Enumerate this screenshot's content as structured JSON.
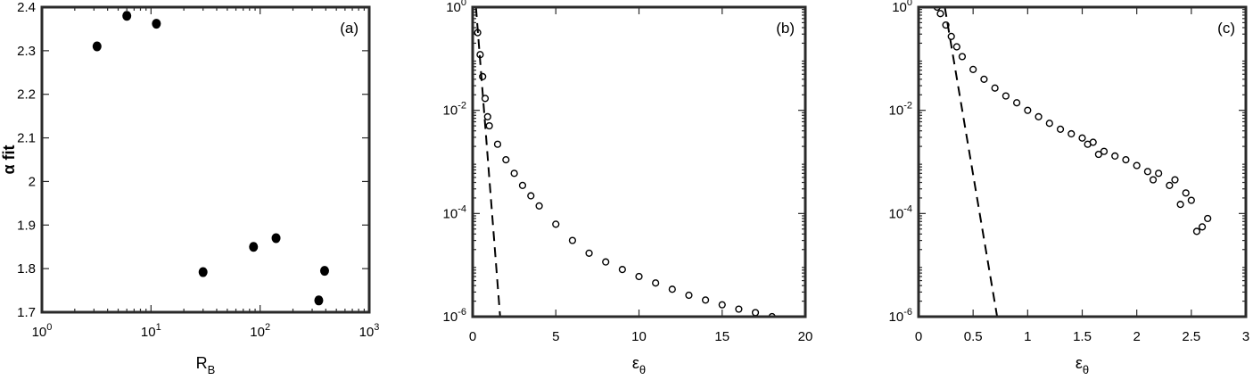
{
  "chart_data": [
    {
      "type": "scatter",
      "panel_label": "(a)",
      "xlabel_main": "R",
      "xlabel_sub": "B",
      "ylabel": "α fit",
      "xscale": "log",
      "xlim": [
        1,
        1000
      ],
      "ylim": [
        1.7,
        2.4
      ],
      "xticks": [
        {
          "base": "10",
          "exp": "0",
          "value": 1
        },
        {
          "base": "10",
          "exp": "1",
          "value": 10
        },
        {
          "base": "10",
          "exp": "2",
          "value": 100
        },
        {
          "base": "10",
          "exp": "3",
          "value": 1000
        }
      ],
      "yticks": [
        {
          "label": "1.7",
          "value": 1.7
        },
        {
          "label": "1.8",
          "value": 1.8
        },
        {
          "label": "1.9",
          "value": 1.9
        },
        {
          "label": "2",
          "value": 2.0
        },
        {
          "label": "2.1",
          "value": 2.1
        },
        {
          "label": "2.2",
          "value": 2.2
        },
        {
          "label": "2.3",
          "value": 2.3
        },
        {
          "label": "2.4",
          "value": 2.4
        }
      ],
      "points": [
        {
          "x": 3.2,
          "y": 2.31
        },
        {
          "x": 6.0,
          "y": 2.38
        },
        {
          "x": 11.2,
          "y": 2.362
        },
        {
          "x": 30,
          "y": 1.792
        },
        {
          "x": 87,
          "y": 1.85
        },
        {
          "x": 140,
          "y": 1.87
        },
        {
          "x": 345,
          "y": 1.727
        },
        {
          "x": 390,
          "y": 1.795
        }
      ]
    },
    {
      "type": "scatter",
      "panel_label": "(b)",
      "xlabel_main": "ε",
      "xlabel_sub": "θ",
      "yscale": "log",
      "xlim": [
        0,
        20
      ],
      "ylim": [
        1e-06,
        1
      ],
      "xticks": [
        {
          "label": "0",
          "value": 0
        },
        {
          "label": "5",
          "value": 5
        },
        {
          "label": "10",
          "value": 10
        },
        {
          "label": "15",
          "value": 15
        },
        {
          "label": "20",
          "value": 20
        }
      ],
      "yticks": [
        {
          "base": "10",
          "exp": "0",
          "value": 1
        },
        {
          "base": "10",
          "exp": "-2",
          "value": 0.01
        },
        {
          "base": "10",
          "exp": "-4",
          "value": 0.0001
        },
        {
          "base": "10",
          "exp": "-6",
          "value": 1e-06
        }
      ],
      "series": [
        {
          "style": "open-circles",
          "x": [
            0.3,
            0.45,
            0.6,
            0.75,
            0.9,
            1.0,
            1.5,
            2,
            2.5,
            3,
            3.5,
            4,
            5,
            6,
            7,
            8,
            9,
            10,
            11,
            12,
            13,
            14,
            15,
            16,
            17,
            18
          ],
          "y": [
            0.32,
            0.12,
            0.045,
            0.017,
            0.0075,
            0.005,
            0.0022,
            0.0011,
            0.0006,
            0.00035,
            0.00022,
            0.00014,
            6.2e-05,
            3e-05,
            1.7e-05,
            1.15e-05,
            8.2e-06,
            6e-06,
            4.5e-06,
            3.4e-06,
            2.6e-06,
            2.1e-06,
            1.7e-06,
            1.4e-06,
            1.2e-06,
            1e-06
          ]
        },
        {
          "style": "dashed",
          "x": [
            0.2,
            1.65
          ],
          "y": [
            1,
            1e-06
          ]
        }
      ]
    },
    {
      "type": "scatter",
      "panel_label": "(c)",
      "xlabel_main": "ε",
      "xlabel_sub": "θ",
      "yscale": "log",
      "xlim": [
        0,
        3
      ],
      "ylim": [
        1e-06,
        1
      ],
      "xticks": [
        {
          "label": "0",
          "value": 0
        },
        {
          "label": "0.5",
          "value": 0.5
        },
        {
          "label": "1",
          "value": 1
        },
        {
          "label": "1.5",
          "value": 1.5
        },
        {
          "label": "2",
          "value": 2
        },
        {
          "label": "2.5",
          "value": 2.5
        },
        {
          "label": "3",
          "value": 3
        }
      ],
      "yticks": [
        {
          "base": "10",
          "exp": "0",
          "value": 1
        },
        {
          "base": "10",
          "exp": "-2",
          "value": 0.01
        },
        {
          "base": "10",
          "exp": "-4",
          "value": 0.0001
        },
        {
          "base": "10",
          "exp": "-6",
          "value": 1e-06
        }
      ],
      "series": [
        {
          "style": "open-circles",
          "x": [
            0.17,
            0.2,
            0.25,
            0.3,
            0.35,
            0.4,
            0.5,
            0.6,
            0.7,
            0.8,
            0.9,
            1.0,
            1.1,
            1.2,
            1.3,
            1.4,
            1.5,
            1.55,
            1.6,
            1.65,
            1.7,
            1.8,
            1.9,
            2.0,
            2.1,
            2.15,
            2.2,
            2.3,
            2.35,
            2.4,
            2.45,
            2.5,
            2.55,
            2.6,
            2.65
          ],
          "y": [
            1.0,
            0.75,
            0.45,
            0.27,
            0.17,
            0.11,
            0.062,
            0.04,
            0.027,
            0.019,
            0.014,
            0.01,
            0.0075,
            0.0056,
            0.0043,
            0.0035,
            0.0029,
            0.0022,
            0.0024,
            0.0014,
            0.0016,
            0.0013,
            0.0011,
            0.00085,
            0.00065,
            0.00045,
            0.0006,
            0.00035,
            0.00045,
            0.00015,
            0.00025,
            0.00018,
            4.5e-05,
            5.5e-05,
            8e-05
          ]
        },
        {
          "style": "dashed",
          "x": [
            0.24,
            0.72
          ],
          "y": [
            1,
            1e-06
          ]
        }
      ]
    }
  ]
}
